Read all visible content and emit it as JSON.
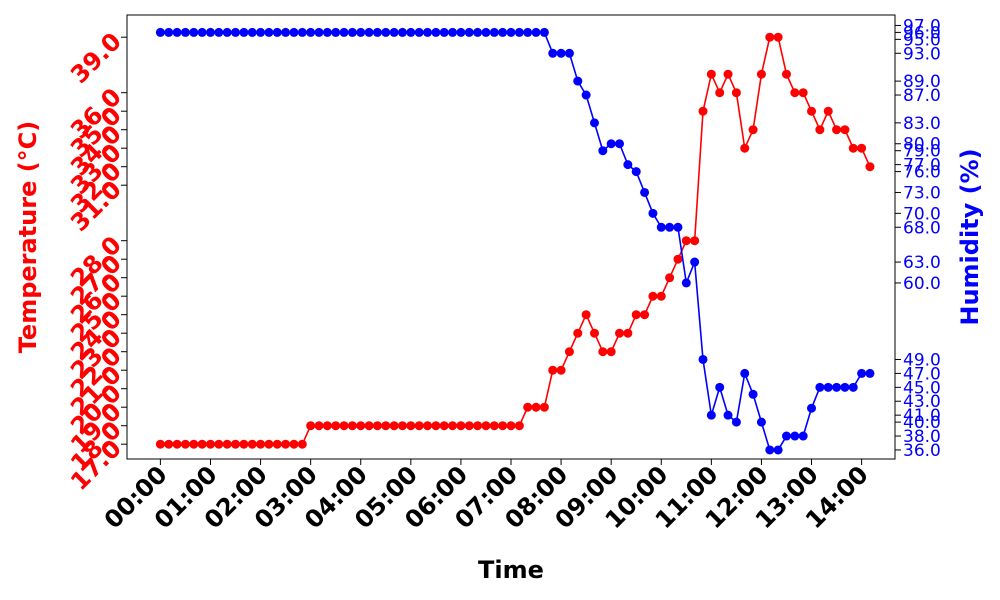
{
  "chart_data": {
    "type": "line",
    "title": "",
    "xlabel": "Time",
    "ylabel_left": "Temperature (°C)",
    "ylabel_right": "Humidity (%)",
    "x_ticks": [
      "00:00",
      "01:00",
      "02:00",
      "03:00",
      "04:00",
      "05:00",
      "06:00",
      "07:00",
      "08:00",
      "09:00",
      "10:00",
      "11:00",
      "12:00",
      "13:00",
      "14:00"
    ],
    "left_ticks": [
      "17.0",
      "18.0",
      "19.0",
      "20.0",
      "21.0",
      "22.0",
      "23.0",
      "24.0",
      "25.0",
      "26.0",
      "27.0",
      "28.0",
      "31.0",
      "32.0",
      "33.0",
      "34.0",
      "35.0",
      "36.0",
      "39.0"
    ],
    "right_ticks": [
      "36.0",
      "38.0",
      "40.0",
      "41.0",
      "43.0",
      "45.0",
      "47.0",
      "49.0",
      "60.0",
      "63.0",
      "68.0",
      "70.0",
      "73.0",
      "76.0",
      "77.0",
      "79.0",
      "80.0",
      "83.0",
      "87.0",
      "89.0",
      "93.0",
      "95.0",
      "96.0",
      "97.0"
    ],
    "ylim_left": [
      16.2,
      40.2
    ],
    "ylim_right": [
      34.7,
      98.5
    ],
    "xlim_minutes": [
      -40,
      880
    ],
    "interval_minutes": 10,
    "series": [
      {
        "name": "Temperature",
        "axis": "left",
        "color": "#ff0000",
        "values": [
          17,
          17,
          17,
          17,
          17,
          17,
          17,
          17,
          17,
          17,
          17,
          17,
          17,
          17,
          17,
          17,
          17,
          17,
          18,
          18,
          18,
          18,
          18,
          18,
          18,
          18,
          18,
          18,
          18,
          18,
          18,
          18,
          18,
          18,
          18,
          18,
          18,
          18,
          18,
          18,
          18,
          18,
          18,
          18,
          19,
          19,
          19,
          21,
          21,
          22,
          23,
          24,
          23,
          22,
          22,
          23,
          23,
          24,
          24,
          25,
          25,
          26,
          27,
          28,
          28,
          35,
          37,
          36,
          37,
          36,
          33,
          34,
          37,
          39,
          39,
          37,
          36,
          36,
          35,
          34,
          35,
          34,
          34,
          33,
          33,
          32
        ]
      },
      {
        "name": "Humidity",
        "axis": "right",
        "color": "#0000ff",
        "values": [
          96,
          96,
          96,
          96,
          96,
          96,
          96,
          96,
          96,
          96,
          96,
          96,
          96,
          96,
          96,
          96,
          96,
          96,
          96,
          96,
          96,
          96,
          96,
          96,
          96,
          96,
          96,
          96,
          96,
          96,
          96,
          96,
          96,
          96,
          96,
          96,
          96,
          96,
          96,
          96,
          96,
          96,
          96,
          96,
          96,
          96,
          96,
          93,
          93,
          93,
          89,
          87,
          83,
          79,
          80,
          80,
          77,
          76,
          73,
          70,
          68,
          68,
          68,
          60,
          63,
          49,
          41,
          45,
          41,
          40,
          47,
          44,
          40,
          36,
          36,
          38,
          38,
          38,
          42,
          45,
          45,
          45,
          45,
          45,
          47,
          47
        ]
      }
    ]
  }
}
